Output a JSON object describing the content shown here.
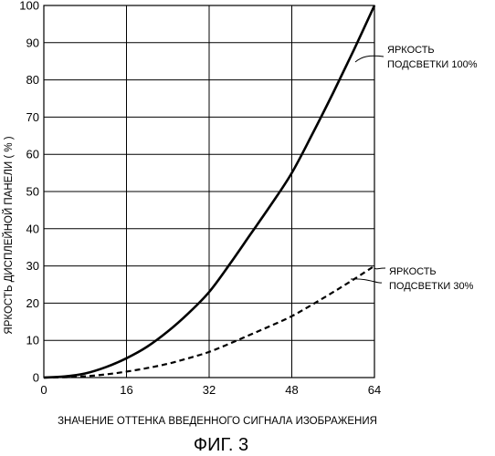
{
  "figure_label": "ФИГ. 3",
  "chart_data": {
    "type": "line",
    "title": "",
    "xlabel": "ЗНАЧЕНИЕ ОТТЕНКА  ВВЕДЕННОГО  СИГНАЛА  ИЗОБРАЖЕНИЯ",
    "ylabel": "ЯРКОСТЬ ДИСПЛЕЙНОЙ ПАНЕЛИ  ( % )",
    "xlim": [
      0,
      64
    ],
    "ylim": [
      0,
      100
    ],
    "xticks": [
      0,
      16,
      32,
      48,
      64
    ],
    "yticks": [
      0,
      10,
      20,
      30,
      40,
      50,
      60,
      70,
      80,
      90,
      100
    ],
    "grid": true,
    "series": [
      {
        "name_lines": [
          "ЯРКОСТЬ",
          "ПОДСВЕТКИ 100%"
        ],
        "style": "solid",
        "x": [
          0,
          4,
          8,
          12,
          16,
          20,
          24,
          28,
          32,
          36,
          40,
          44,
          48,
          52,
          56,
          60,
          64
        ],
        "y": [
          0,
          0.3,
          1.1,
          2.8,
          5.2,
          8.3,
          12.4,
          17.3,
          23,
          30.5,
          38.5,
          46.5,
          55,
          65.5,
          76.5,
          88,
          100
        ]
      },
      {
        "name_lines": [
          "ЯРКОСТЬ",
          "ПОДСВЕТКИ 30%"
        ],
        "style": "dashed",
        "x": [
          0,
          4,
          8,
          12,
          16,
          20,
          24,
          28,
          32,
          36,
          40,
          44,
          48,
          52,
          56,
          60,
          64
        ],
        "y": [
          0,
          0.1,
          0.35,
          0.85,
          1.6,
          2.55,
          3.7,
          5.2,
          6.9,
          9.15,
          11.55,
          13.95,
          16.5,
          19.65,
          22.95,
          26.4,
          30
        ]
      }
    ]
  }
}
